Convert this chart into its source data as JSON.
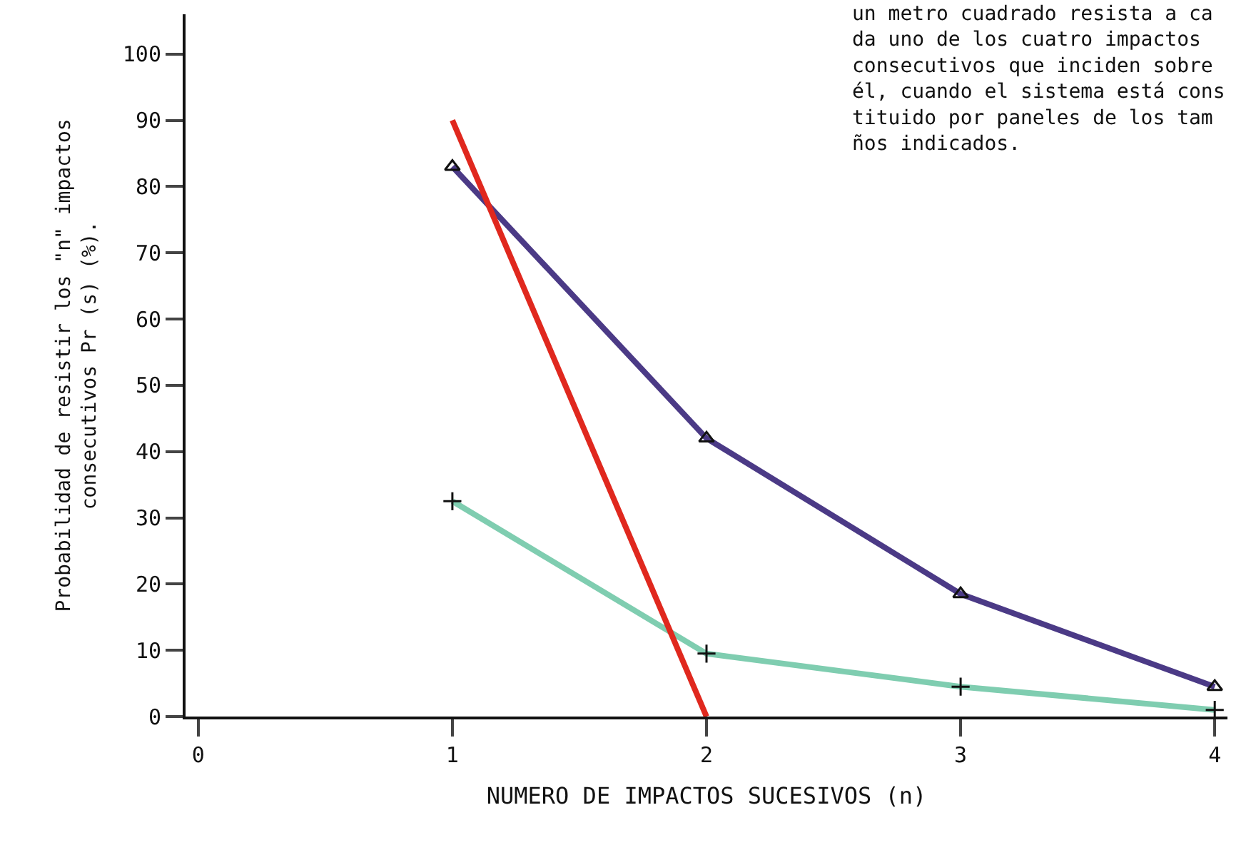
{
  "chart_data": {
    "type": "line",
    "x": [
      1,
      2,
      3,
      4
    ],
    "series": [
      {
        "color": "#4b3a86",
        "values": [
          83,
          42,
          18.5,
          4.5
        ],
        "marker": "triangle"
      },
      {
        "color": "#7fcdb0",
        "values": [
          32.5,
          9.5,
          4.5,
          1
        ],
        "marker": "cross"
      },
      {
        "color": "#e0281e",
        "x": [
          1,
          2
        ],
        "values": [
          90,
          0
        ],
        "marker": "none"
      }
    ],
    "xlabel": "NUMERO DE IMPACTOS SUCESIVOS (n)",
    "ylabel": "Probabilidad de resistir los \"n\" impactos\nconsecutivos Pr (s) (%).",
    "annotations": [
      "un metro cuadrado resista a ca\nda uno de los cuatro impactos\nconsecutivos que inciden sobre\nél, cuando el sistema está cons\ntituido por paneles de los tam\nños indicados."
    ],
    "xlim": [
      -0.05,
      4.05
    ],
    "ylim": [
      0,
      106
    ],
    "xticks": [
      0,
      1,
      2,
      3,
      4
    ],
    "yticks": [
      0,
      10,
      20,
      30,
      40,
      50,
      60,
      70,
      80,
      90,
      100
    ],
    "line_style": "solid"
  }
}
